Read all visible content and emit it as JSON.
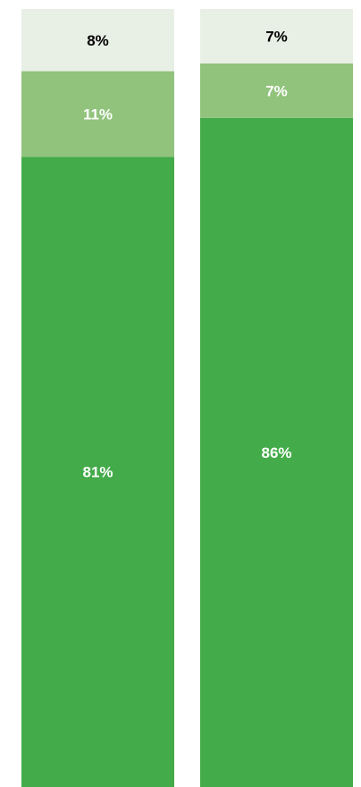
{
  "chart_data": {
    "type": "bar",
    "stacked": true,
    "orientation": "vertical",
    "title": "",
    "xlabel": "",
    "ylabel": "",
    "categories": [
      "",
      ""
    ],
    "ylim": [
      0,
      100
    ],
    "grid": false,
    "legend": "none",
    "series": [
      {
        "values": [
          81,
          86
        ],
        "labels": [
          "81%",
          "86%"
        ],
        "color": "#43ab49",
        "label_color": "#ffffff"
      },
      {
        "values": [
          11,
          7
        ],
        "labels": [
          "11%",
          "7%"
        ],
        "color": "#91c37c",
        "label_color": "#ffffff"
      },
      {
        "values": [
          8,
          7
        ],
        "labels": [
          "8%",
          "7%"
        ],
        "color": "#e8f0e5",
        "label_color": "#000000"
      }
    ]
  }
}
